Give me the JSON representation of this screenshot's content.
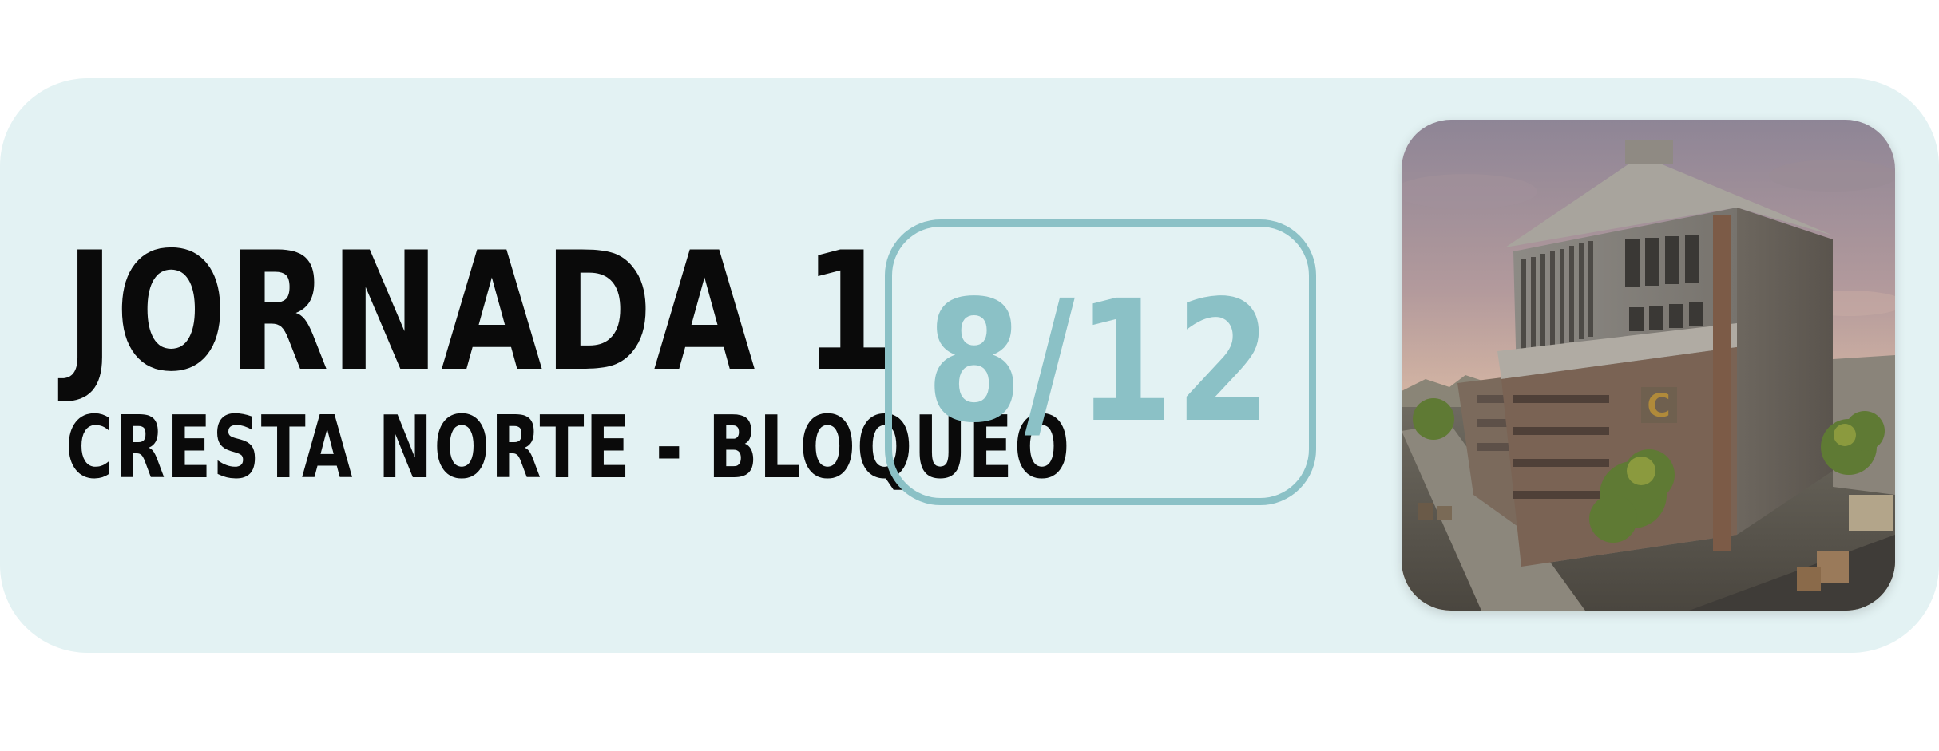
{
  "card": {
    "title": "JORNADA 1",
    "subtitle": "CRESTA NORTE - BLOQUEO",
    "score": "8/12"
  },
  "colors": {
    "card_background": "#e3f2f3",
    "accent": "#8bc1c6",
    "text": "#0a0a0a"
  },
  "image": {
    "description_icon": "map-thumbnail-icon"
  }
}
